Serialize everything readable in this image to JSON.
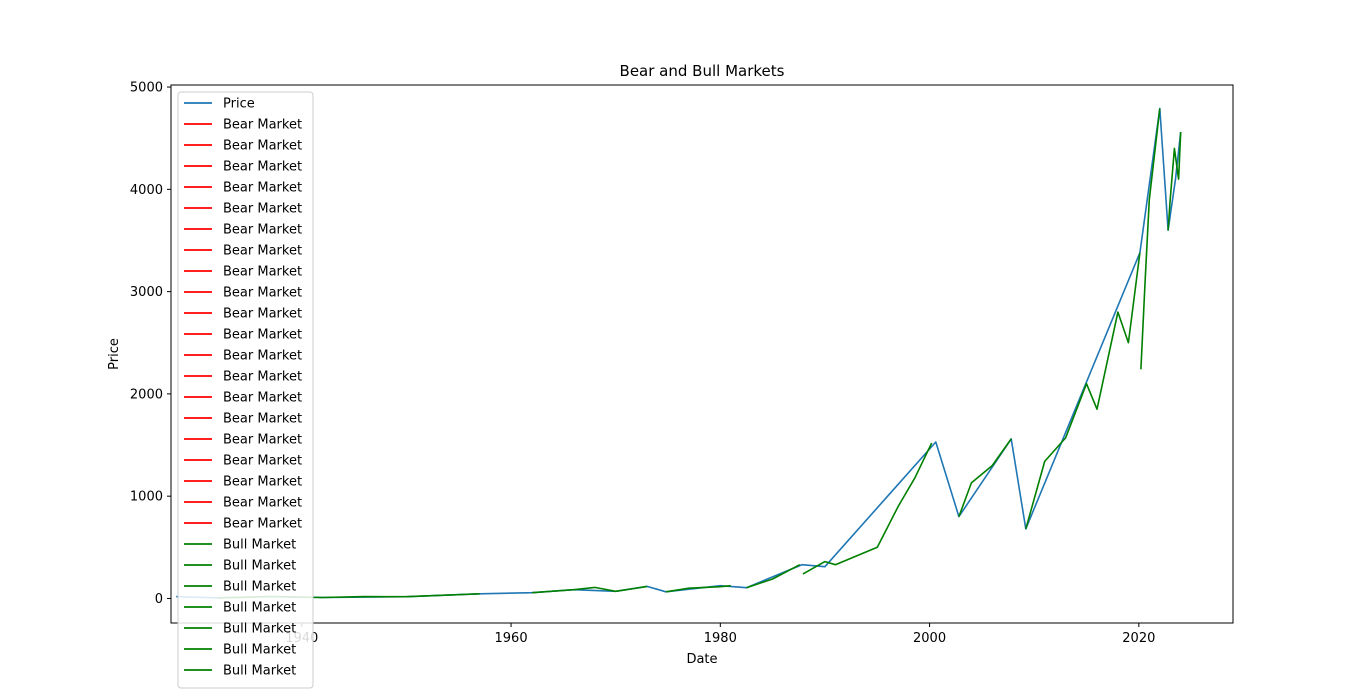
{
  "chart_data": {
    "type": "line",
    "title": "Bear and Bull Markets",
    "xlabel": "Date",
    "ylabel": "Price",
    "xlim": [
      1927.5,
      2029
    ],
    "ylim": [
      -240,
      5020
    ],
    "xticks": [
      1940,
      1960,
      1980,
      2000,
      2020
    ],
    "yticks": [
      0,
      1000,
      2000,
      3000,
      4000,
      5000
    ],
    "grid": false,
    "legend_position": "upper-left",
    "legend": [
      "Price",
      "Bear Market",
      "Bear Market",
      "Bear Market",
      "Bear Market",
      "Bear Market",
      "Bear Market",
      "Bear Market",
      "Bear Market",
      "Bear Market",
      "Bear Market",
      "Bear Market",
      "Bear Market",
      "Bear Market",
      "Bear Market",
      "Bear Market",
      "Bear Market",
      "Bear Market",
      "Bear Market",
      "Bear Market",
      "Bear Market",
      "Bull Market",
      "Bull Market",
      "Bull Market",
      "Bull Market",
      "Bull Market",
      "Bull Market",
      "Bull Market"
    ],
    "legend_colors": {
      "Price": "#1f77b4",
      "Bear Market": "#ff0000",
      "Bull Market": "#008000"
    },
    "series": [
      {
        "name": "Price",
        "color": "#1f77b4",
        "x": [
          1928,
          1932,
          1937,
          1942,
          1950,
          1957,
          1962,
          1966,
          1970,
          1973,
          1974.8,
          1980,
          1982.5,
          1987.8,
          1990,
          2000.6,
          2002.8,
          2007.8,
          2009.2,
          2020.1,
          2022,
          2022.8,
          2023.5,
          2024
        ],
        "y": [
          18,
          5,
          18,
          9,
          17,
          45,
          56,
          86,
          70,
          118,
          65,
          125,
          105,
          330,
          310,
          1530,
          800,
          1560,
          680,
          3380,
          4790,
          3600,
          4100,
          4560
        ]
      },
      {
        "name": "Bull Market",
        "color": "#008000",
        "segments": [
          {
            "x": [
              1932,
              1937,
              1942,
              1946,
              1950,
              1957
            ],
            "y": [
              5,
              18,
              9,
              18,
              17,
              45
            ]
          },
          {
            "x": [
              1962,
              1966,
              1968,
              1970,
              1973
            ],
            "y": [
              56,
              86,
              108,
              70,
              118
            ]
          },
          {
            "x": [
              1974.8,
              1977,
              1980,
              1981
            ],
            "y": [
              65,
              100,
              115,
              125
            ]
          },
          {
            "x": [
              1982.5,
              1985,
              1987.6
            ],
            "y": [
              105,
              190,
              330
            ]
          },
          {
            "x": [
              1987.9,
              1990,
              1991,
              1995,
              1997,
              1998.6,
              2000.2
            ],
            "y": [
              240,
              360,
              330,
              500,
              900,
              1180,
              1520
            ]
          },
          {
            "x": [
              2002.8,
              2004,
              2006,
              2007.8
            ],
            "y": [
              800,
              1130,
              1300,
              1560
            ]
          },
          {
            "x": [
              2009.2,
              2011,
              2013,
              2015,
              2016,
              2018,
              2019,
              2020.1
            ],
            "y": [
              680,
              1340,
              1570,
              2100,
              1850,
              2800,
              2500,
              3380
            ]
          },
          {
            "x": [
              2020.2,
              2020.6,
              2021,
              2022
            ],
            "y": [
              2240,
              3100,
              3900,
              4790
            ]
          },
          {
            "x": [
              2022.8,
              2023,
              2023.4,
              2023.8,
              2024
            ],
            "y": [
              3600,
              3900,
              4400,
              4100,
              4560
            ]
          }
        ]
      }
    ]
  }
}
